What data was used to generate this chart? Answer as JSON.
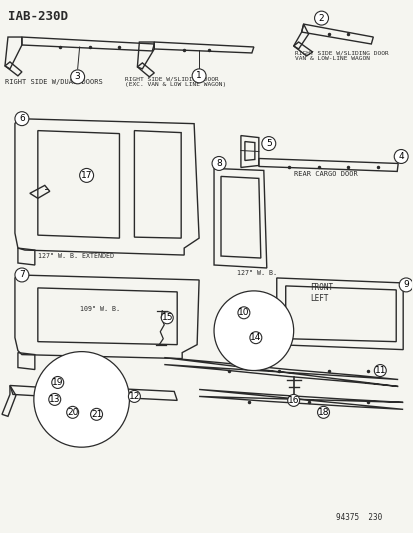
{
  "title": "IAB-230D",
  "bg_color": "#f5f5f0",
  "line_color": "#2a2a2a",
  "fig_width": 4.14,
  "fig_height": 5.33,
  "dpi": 100,
  "labels": {
    "label_dual": "RIGHT SIDE W/DUAL DOORS",
    "label_sliding_exc": "RIGHT SIDE W/SLIDING DOOR\n(EXC. VAN & LOW LINE WAGON)",
    "label_sliding_van": "RIGHT SIDE W/SLIDING DOOR\nVAN & LOW-LINE WAGON",
    "label_cargo": "REAR CARGO DOOR",
    "label_127ext": "127\" W. B. EXTENDED",
    "label_109": "109\" W. B.",
    "label_127": "127\" W. B.",
    "label_front": "FRONT\nLEFT",
    "bottom_right": "94375  230"
  }
}
